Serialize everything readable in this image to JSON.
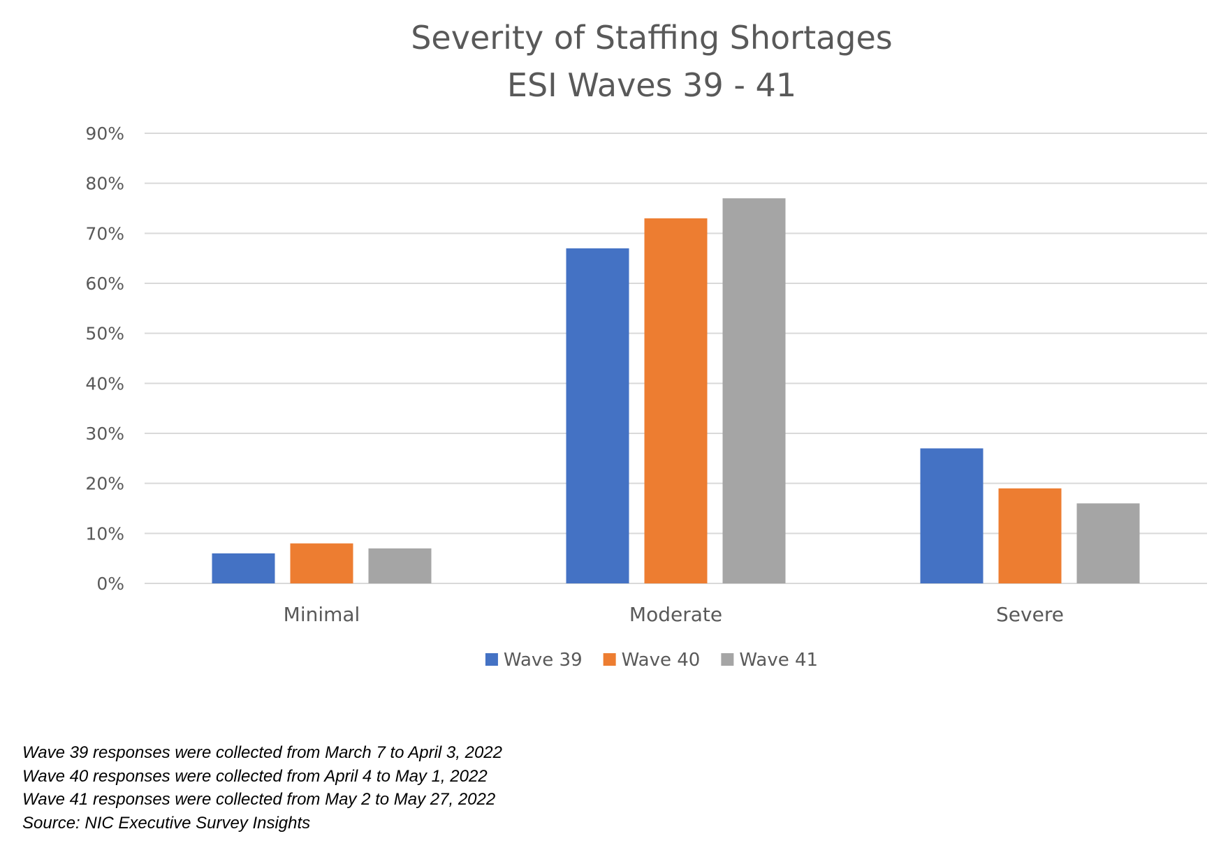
{
  "chart_data": {
    "type": "bar",
    "title": "Severity of Staffing Shortages",
    "subtitle": "ESI Waves 39 - 41",
    "categories": [
      "Minimal",
      "Moderate",
      "Severe"
    ],
    "series": [
      {
        "name": "Wave 39",
        "color": "#4472c4",
        "values": [
          6,
          67,
          27
        ]
      },
      {
        "name": "Wave 40",
        "color": "#ed7d31",
        "values": [
          8,
          73,
          19
        ]
      },
      {
        "name": "Wave 41",
        "color": "#a5a5a5",
        "values": [
          7,
          77,
          16
        ]
      }
    ],
    "ylim": [
      0,
      90
    ],
    "yticks": [
      0,
      10,
      20,
      30,
      40,
      50,
      60,
      70,
      80,
      90
    ],
    "ytick_labels": [
      "0%",
      "10%",
      "20%",
      "30%",
      "40%",
      "50%",
      "60%",
      "70%",
      "80%",
      "90%"
    ],
    "xlabel": "",
    "ylabel": "",
    "grid": true,
    "legend": "bottom-center"
  },
  "notes": [
    "Wave 39 responses were collected from March 7 to April 3, 2022",
    "Wave 40 responses were collected from April 4 to May 1, 2022",
    "Wave 41 responses were collected from May 2 to May 27, 2022",
    "Source: NIC Executive Survey Insights"
  ]
}
